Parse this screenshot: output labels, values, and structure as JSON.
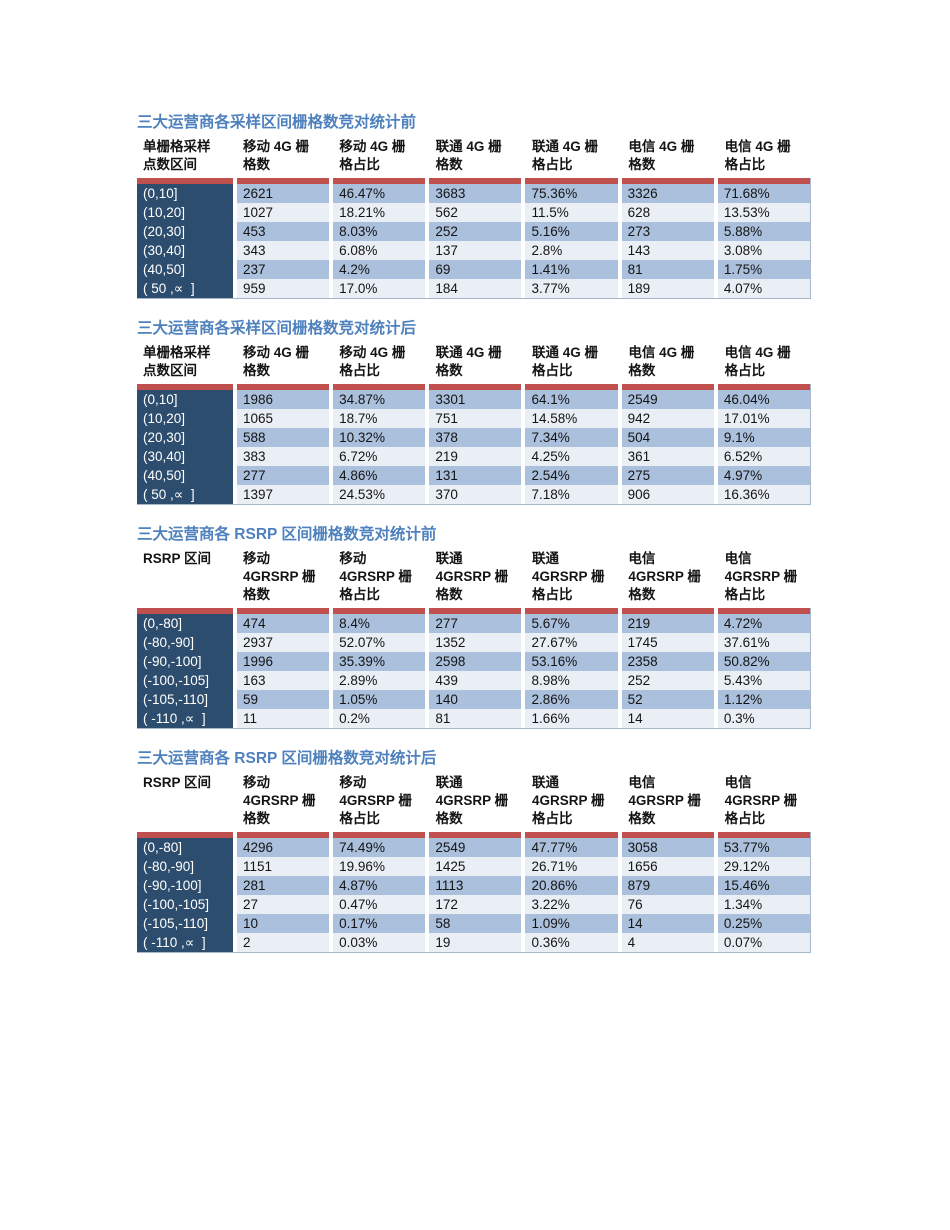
{
  "colors": {
    "title_blue": "#4E81BD",
    "red_separator": "#C0504D",
    "label_column_bg": "#2D4D6E",
    "label_column_text": "#ffffff",
    "row_band_blue": "#ABC0DC",
    "row_band_light": "#EAEFF6",
    "table_border": "#A9B7CC",
    "page_bg": "#ffffff"
  },
  "tables": [
    {
      "title": "三大运营商各采样区间栅格数竞对统计前",
      "headers": [
        "单栅格采样\n点数区间",
        "移动 4G 栅\n格数",
        "移动 4G 栅\n格占比",
        "联通 4G 栅\n格数",
        "联通 4G 栅\n格占比",
        "电信 4G 栅\n格数",
        "电信 4G 栅\n格占比"
      ],
      "rows": [
        {
          "label": "(0,10]",
          "cells": [
            "2621",
            "46.47%",
            "3683",
            "75.36%",
            "3326",
            "71.68%"
          ]
        },
        {
          "label": "(10,20]",
          "cells": [
            "1027",
            "18.21%",
            "562",
            "11.5%",
            "628",
            "13.53%"
          ]
        },
        {
          "label": "(20,30]",
          "cells": [
            "453",
            "8.03%",
            "252",
            "5.16%",
            "273",
            "5.88%"
          ]
        },
        {
          "label": "(30,40]",
          "cells": [
            "343",
            "6.08%",
            "137",
            "2.8%",
            "143",
            "3.08%"
          ]
        },
        {
          "label": "(40,50]",
          "cells": [
            "237",
            "4.2%",
            "69",
            "1.41%",
            "81",
            "1.75%"
          ]
        },
        {
          "label": "( 50 ,∝  ]",
          "cells": [
            "959",
            "17.0%",
            "184",
            "3.77%",
            "189",
            "4.07%"
          ]
        }
      ]
    },
    {
      "title": "三大运营商各采样区间栅格数竞对统计后",
      "headers": [
        "单栅格采样\n点数区间",
        "移动 4G 栅\n格数",
        "移动 4G 栅\n格占比",
        "联通 4G 栅\n格数",
        "联通 4G 栅\n格占比",
        "电信 4G 栅\n格数",
        "电信 4G 栅\n格占比"
      ],
      "rows": [
        {
          "label": "(0,10]",
          "cells": [
            "1986",
            "34.87%",
            "3301",
            "64.1%",
            "2549",
            "46.04%"
          ]
        },
        {
          "label": "(10,20]",
          "cells": [
            "1065",
            "18.7%",
            "751",
            "14.58%",
            "942",
            "17.01%"
          ]
        },
        {
          "label": "(20,30]",
          "cells": [
            "588",
            "10.32%",
            "378",
            "7.34%",
            "504",
            "9.1%"
          ]
        },
        {
          "label": "(30,40]",
          "cells": [
            "383",
            "6.72%",
            "219",
            "4.25%",
            "361",
            "6.52%"
          ]
        },
        {
          "label": "(40,50]",
          "cells": [
            "277",
            "4.86%",
            "131",
            "2.54%",
            "275",
            "4.97%"
          ]
        },
        {
          "label": "( 50 ,∝  ]",
          "cells": [
            "1397",
            "24.53%",
            "370",
            "7.18%",
            "906",
            "16.36%"
          ]
        }
      ]
    },
    {
      "title": "三大运营商各 RSRP 区间栅格数竞对统计前",
      "headers": [
        "RSRP 区间",
        "移动\n4GRSRP 栅\n格数",
        "移动\n4GRSRP 栅\n格占比",
        "联通\n4GRSRP 栅\n格数",
        "联通\n4GRSRP 栅\n格占比",
        "电信\n4GRSRP 栅\n格数",
        "电信\n4GRSRP 栅\n格占比"
      ],
      "rows": [
        {
          "label": "(0,-80]",
          "cells": [
            "474",
            "8.4%",
            "277",
            "5.67%",
            "219",
            "4.72%"
          ]
        },
        {
          "label": "(-80,-90]",
          "cells": [
            "2937",
            "52.07%",
            "1352",
            "27.67%",
            "1745",
            "37.61%"
          ]
        },
        {
          "label": "(-90,-100]",
          "cells": [
            "1996",
            "35.39%",
            "2598",
            "53.16%",
            "2358",
            "50.82%"
          ]
        },
        {
          "label": "(-100,-105]",
          "cells": [
            "163",
            "2.89%",
            "439",
            "8.98%",
            "252",
            "5.43%"
          ]
        },
        {
          "label": "(-105,-110]",
          "cells": [
            "59",
            "1.05%",
            "140",
            "2.86%",
            "52",
            "1.12%"
          ]
        },
        {
          "label": "( -110 ,∝  ]",
          "cells": [
            "11",
            "0.2%",
            "81",
            "1.66%",
            "14",
            "0.3%"
          ]
        }
      ]
    },
    {
      "title": "三大运营商各 RSRP 区间栅格数竞对统计后",
      "headers": [
        "RSRP 区间",
        "移动\n4GRSRP 栅\n格数",
        "移动\n4GRSRP 栅\n格占比",
        "联通\n4GRSRP 栅\n格数",
        "联通\n4GRSRP 栅\n格占比",
        "电信\n4GRSRP 栅\n格数",
        "电信\n4GRSRP 栅\n格占比"
      ],
      "rows": [
        {
          "label": "(0,-80]",
          "cells": [
            "4296",
            "74.49%",
            "2549",
            "47.77%",
            "3058",
            "53.77%"
          ]
        },
        {
          "label": "(-80,-90]",
          "cells": [
            "1151",
            "19.96%",
            "1425",
            "26.71%",
            "1656",
            "29.12%"
          ]
        },
        {
          "label": "(-90,-100]",
          "cells": [
            "281",
            "4.87%",
            "1113",
            "20.86%",
            "879",
            "15.46%"
          ]
        },
        {
          "label": "(-100,-105]",
          "cells": [
            "27",
            "0.47%",
            "172",
            "3.22%",
            "76",
            "1.34%"
          ]
        },
        {
          "label": "(-105,-110]",
          "cells": [
            "10",
            "0.17%",
            "58",
            "1.09%",
            "14",
            "0.25%"
          ]
        },
        {
          "label": "( -110 ,∝  ]",
          "cells": [
            "2",
            "0.03%",
            "19",
            "0.36%",
            "4",
            "0.07%"
          ]
        }
      ]
    }
  ]
}
